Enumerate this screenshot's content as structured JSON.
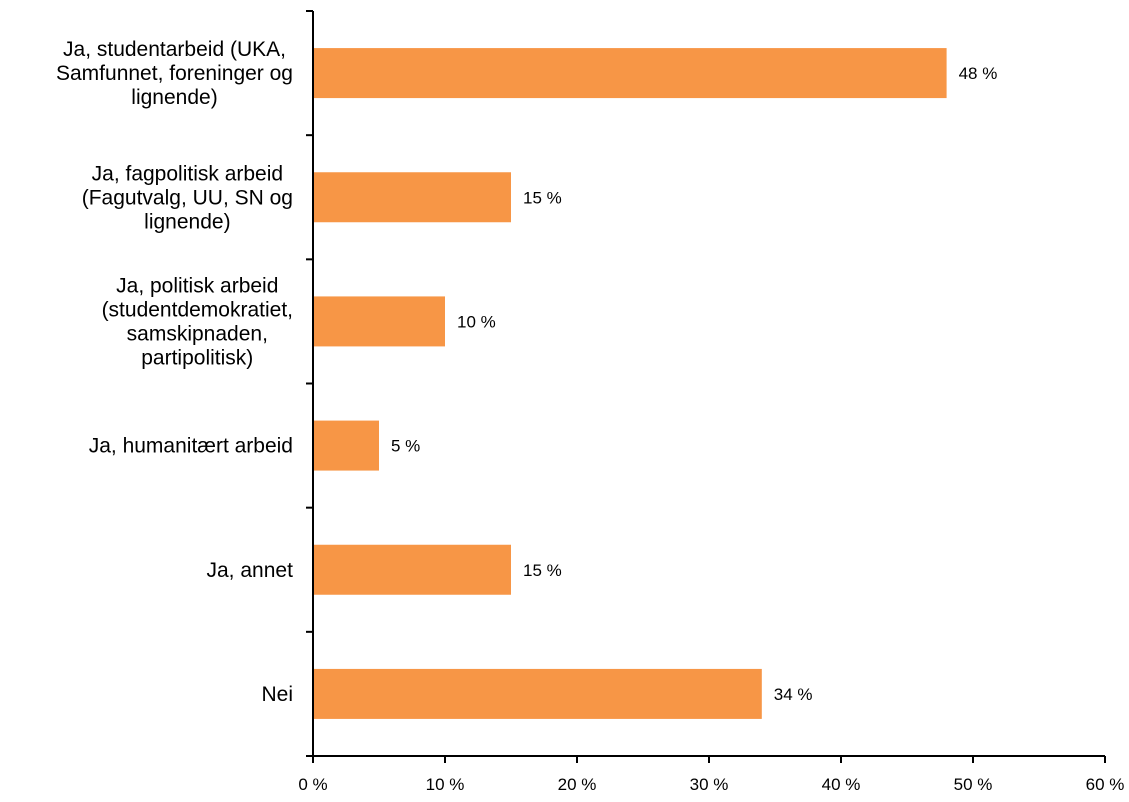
{
  "colors": {
    "bar": "#F79646",
    "axis": "#000000",
    "background": "#FFFFFF"
  },
  "chart_data": {
    "type": "bar",
    "orientation": "horizontal",
    "title": "",
    "xlabel": "",
    "ylabel": "",
    "xlim": [
      0,
      60
    ],
    "grid": false,
    "legend": "none",
    "categories": [
      "Ja, studentarbeid (UKA, Samfunnet, foreninger og lignende)",
      "Ja, fagpolitisk arbeid (Fagutvalg, UU, SN og lignende)",
      "Ja, politisk arbeid (studentdemokratiet, samskipnaden, partipolitisk)",
      "Ja, humanitært arbeid",
      "Ja, annet",
      "Nei"
    ],
    "category_label_lines": [
      [
        "Ja, studentarbeid (UKA,",
        "Samfunnet, foreninger og",
        "lignende)"
      ],
      [
        "Ja, fagpolitisk arbeid",
        "(Fagutvalg, UU, SN og",
        "lignende)"
      ],
      [
        "Ja, politisk arbeid",
        "(studentdemokratiet,",
        "samskipnaden,",
        "partipolitisk)"
      ],
      [
        "Ja, humanitært arbeid"
      ],
      [
        "Ja, annet"
      ],
      [
        "Nei"
      ]
    ],
    "values": [
      48,
      15,
      10,
      5,
      15,
      34
    ],
    "value_labels": [
      "48 %",
      "15 %",
      "10 %",
      "5 %",
      "15 %",
      "34 %"
    ],
    "x_ticks": [
      0,
      10,
      20,
      30,
      40,
      50,
      60
    ],
    "x_tick_labels": [
      "0 %",
      "10 %",
      "20 %",
      "30 %",
      "40 %",
      "50 %",
      "60 %"
    ]
  }
}
